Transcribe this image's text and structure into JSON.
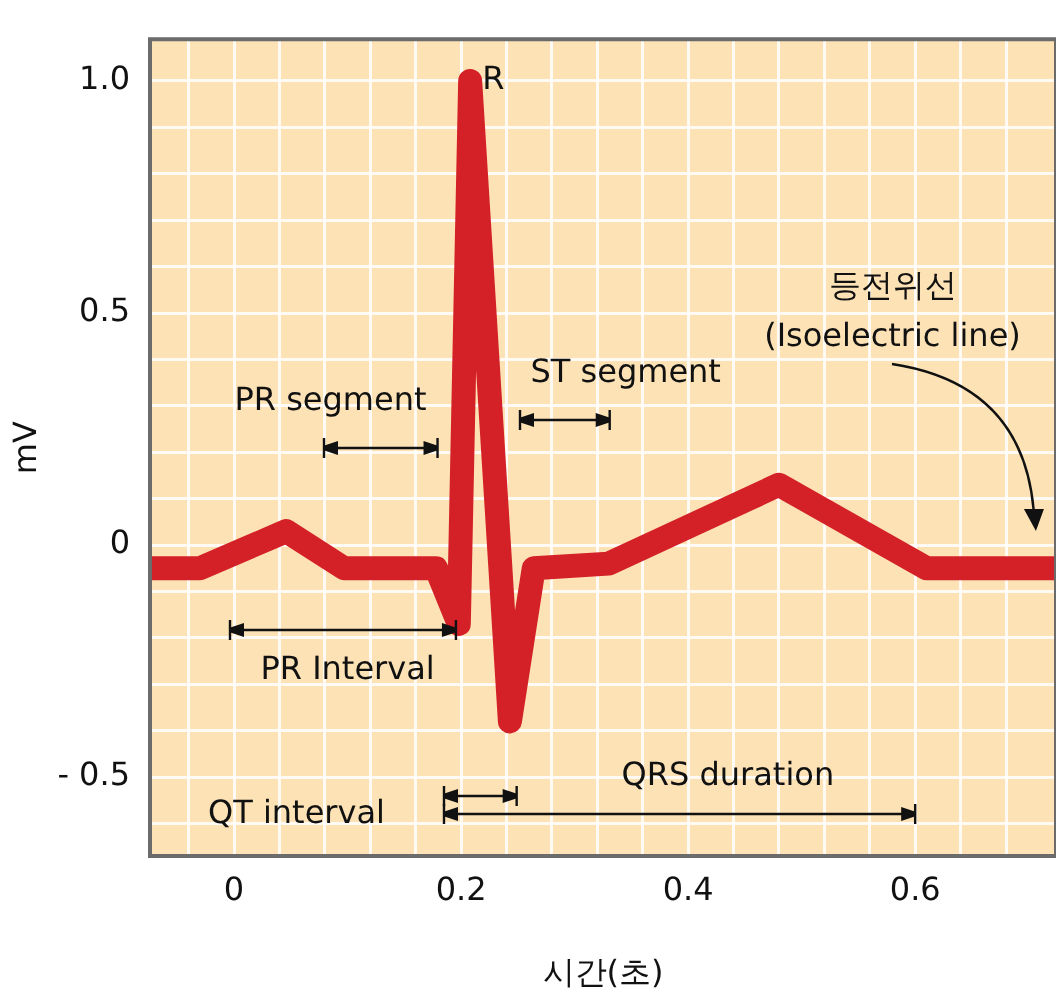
{
  "chart_data": {
    "type": "line",
    "xlabel": "시간(초)",
    "ylabel": "mV",
    "xlim": [
      -0.074,
      0.724
    ],
    "ylim": [
      -0.67,
      1.09
    ],
    "xticks": [
      {
        "value": -0.04,
        "label": null
      },
      0,
      {
        "value": 0.04,
        "label": null
      },
      {
        "value": 0.08,
        "label": null
      },
      {
        "value": 0.12,
        "label": null
      },
      {
        "value": 0.16,
        "label": null
      },
      {
        "value": 0.2,
        "label": "0.2"
      },
      {
        "value": 0.24,
        "label": null
      },
      {
        "value": 0.28,
        "label": null
      },
      {
        "value": 0.32,
        "label": null
      },
      {
        "value": 0.36,
        "label": null
      },
      {
        "value": 0.4,
        "label": "0.4"
      },
      {
        "value": 0.44,
        "label": null
      },
      {
        "value": 0.48,
        "label": null
      },
      {
        "value": 0.52,
        "label": null
      },
      {
        "value": 0.56,
        "label": null
      },
      {
        "value": 0.6,
        "label": "0.6"
      },
      {
        "value": 0.64,
        "label": null
      },
      {
        "value": 0.68,
        "label": null
      }
    ],
    "yticks": [
      {
        "value": -0.6,
        "label": null
      },
      {
        "value": -0.5,
        "label": "- 0.5"
      },
      {
        "value": -0.4,
        "label": null
      },
      {
        "value": -0.3,
        "label": null
      },
      {
        "value": -0.2,
        "label": null
      },
      {
        "value": -0.1,
        "label": null
      },
      0,
      {
        "value": 0.1,
        "label": null
      },
      {
        "value": 0.2,
        "label": null
      },
      {
        "value": 0.3,
        "label": null
      },
      {
        "value": 0.4,
        "label": null
      },
      {
        "value": 0.5,
        "label": "0.5"
      },
      {
        "value": 0.6,
        "label": null
      },
      {
        "value": 0.7,
        "label": null
      },
      {
        "value": 0.8,
        "label": null
      },
      {
        "value": 0.9,
        "label": null
      },
      {
        "value": 1.0,
        "label": "1.0"
      }
    ],
    "grid": true,
    "marker": "none",
    "line_style": "solid",
    "series": [
      {
        "color": "#d42027",
        "x": [
          -0.074,
          -0.03,
          0.046,
          0.097,
          0.178,
          0.198,
          0.208,
          0.243,
          0.264,
          0.33,
          0.48,
          0.61,
          0.724
        ],
        "values": [
          -0.05,
          -0.05,
          0.03,
          -0.05,
          -0.05,
          -0.17,
          1.0,
          -0.38,
          -0.05,
          -0.04,
          0.13,
          -0.05,
          -0.05
        ]
      }
    ],
    "annotations": [
      {
        "text": "R",
        "x": 0.208,
        "y": 1.0
      },
      "PR segment",
      "ST segment",
      "PR Interval",
      "QRS duration",
      "QT interval",
      "등전위선\n(Isoelectric line)"
    ]
  }
}
